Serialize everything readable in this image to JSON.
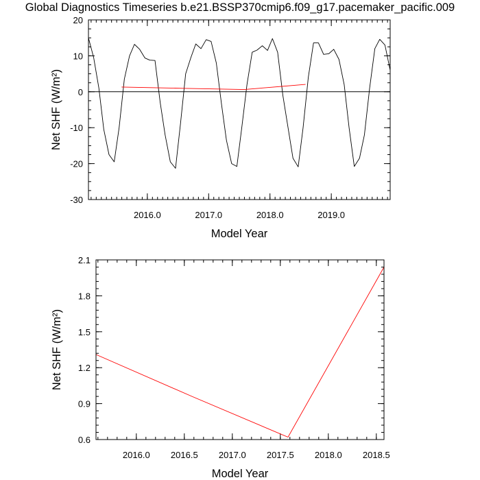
{
  "title": "Global Diagnostics Timeseries b.e21.BSSP370cmip6.f09_g17.pacemaker_pacific.009",
  "colors": {
    "monthly_series": "#000000",
    "annual_series": "#ff0000",
    "zero_line": "#000000"
  },
  "chart_data": [
    {
      "type": "line",
      "xlabel": "Model Year",
      "ylabel": "Net SHF (W/m²)",
      "xlim": [
        2015.04,
        2019.96
      ],
      "ylim": [
        -30,
        20
      ],
      "xticks": [
        2016.0,
        2017.0,
        2018.0,
        2019.0
      ],
      "xtick_labels": [
        "2016.0",
        "2017.0",
        "2018.0",
        "2019.0"
      ],
      "yticks": [
        -30,
        -20,
        -10,
        0,
        10,
        20
      ],
      "ytick_labels": [
        "-30",
        "-20",
        "-10",
        "0",
        "10",
        "20"
      ],
      "reference_line_y": 0,
      "series": [
        {
          "x": [
            2015.04,
            2015.125,
            2015.21,
            2015.29,
            2015.375,
            2015.46,
            2015.54,
            2015.625,
            2015.71,
            2015.79,
            2015.875,
            2015.96,
            2016.04,
            2016.125,
            2016.21,
            2016.29,
            2016.375,
            2016.46,
            2016.54,
            2016.625,
            2016.71,
            2016.79,
            2016.875,
            2016.96,
            2017.04,
            2017.125,
            2017.21,
            2017.29,
            2017.375,
            2017.46,
            2017.54,
            2017.625,
            2017.71,
            2017.79,
            2017.875,
            2017.96,
            2018.04,
            2018.125,
            2018.21,
            2018.29,
            2018.375,
            2018.46,
            2018.54,
            2018.625,
            2018.71,
            2018.79,
            2018.875,
            2018.96,
            2019.04,
            2019.125,
            2019.21,
            2019.29,
            2019.375,
            2019.46,
            2019.54,
            2019.625,
            2019.71,
            2019.79,
            2019.875,
            2019.96
          ],
          "y": [
            15.0,
            9.5,
            1.0,
            -10.5,
            -17.5,
            -19.5,
            -10.0,
            3.5,
            10.0,
            13.2,
            11.8,
            9.4,
            8.8,
            8.7,
            -3.0,
            -12.0,
            -19.5,
            -21.3,
            -9.0,
            5.0,
            9.5,
            13.3,
            12.0,
            14.5,
            14.0,
            8.0,
            -3.5,
            -13.5,
            -20.0,
            -20.8,
            -10.0,
            2.0,
            11.0,
            11.6,
            12.8,
            11.5,
            14.8,
            11.0,
            -1.0,
            -9.5,
            -18.5,
            -20.9,
            -10.0,
            4.0,
            13.6,
            13.6,
            10.4,
            10.6,
            11.8,
            9.0,
            2.0,
            -10.0,
            -20.8,
            -18.5,
            -12.0,
            1.0,
            12.0,
            14.6,
            13.0,
            6.0
          ]
        },
        {
          "x": [
            2015.58,
            2016.58,
            2017.58,
            2018.58
          ],
          "y": [
            1.31,
            0.96,
            0.62,
            2.04
          ]
        }
      ]
    },
    {
      "type": "line",
      "xlabel": "Model Year",
      "ylabel": "Net SHF (W/m²)",
      "xlim": [
        2015.58,
        2018.58
      ],
      "ylim": [
        0.6,
        2.1
      ],
      "xticks": [
        2016.0,
        2016.5,
        2017.0,
        2017.5,
        2018.0,
        2018.5
      ],
      "xtick_labels": [
        "2016.0",
        "2016.5",
        "2017.0",
        "2017.5",
        "2018.0",
        "2018.5"
      ],
      "yticks": [
        0.6,
        0.9,
        1.2,
        1.5,
        1.8,
        2.1
      ],
      "ytick_labels": [
        "0.6",
        "0.9",
        "1.2",
        "1.5",
        "1.8",
        "2.1"
      ],
      "series": [
        {
          "x": [
            2015.58,
            2016.58,
            2017.58,
            2018.58
          ],
          "y": [
            1.31,
            0.96,
            0.62,
            2.04
          ]
        }
      ]
    }
  ]
}
